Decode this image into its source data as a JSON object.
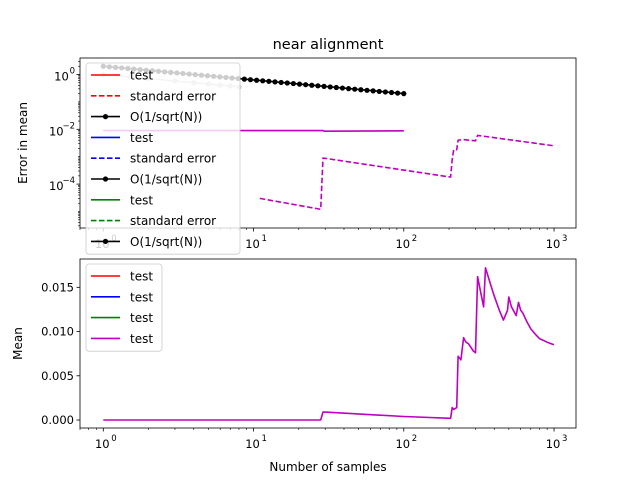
{
  "title": "near alignment",
  "chart_data": [
    {
      "type": "line",
      "title": "near alignment",
      "xlabel": "",
      "ylabel": "Error in mean",
      "xscale": "log",
      "yscale": "log",
      "xlim": [
        0.7,
        1400
      ],
      "ylim": [
        2.5e-06,
        4
      ],
      "x_ticks": [
        1,
        10,
        100,
        1000
      ],
      "x_tick_labels": [
        "10",
        "10",
        "10",
        "10"
      ],
      "x_tick_exponents": [
        "0",
        "1",
        "2",
        "3"
      ],
      "y_ticks": [
        0.0001,
        0.01,
        1
      ],
      "y_tick_labels": [
        "10",
        "10",
        "10"
      ],
      "y_tick_exponents": [
        "−4",
        "−2",
        "0"
      ],
      "grid": false,
      "legend_position": "upper-left",
      "legend": [
        {
          "label": "test",
          "color": "#ff0000",
          "style": "solid"
        },
        {
          "label": "standard error",
          "color": "#ff0000",
          "style": "dashed"
        },
        {
          "label": "O(1/sqrt(N))",
          "color": "#000000",
          "style": "marker-line"
        },
        {
          "label": "test",
          "color": "#0000ff",
          "style": "solid"
        },
        {
          "label": "standard error",
          "color": "#0000ff",
          "style": "dashed"
        },
        {
          "label": "O(1/sqrt(N))",
          "color": "#000000",
          "style": "marker-line"
        },
        {
          "label": "test",
          "color": "#008000",
          "style": "solid"
        },
        {
          "label": "standard error",
          "color": "#008000",
          "style": "dashed"
        },
        {
          "label": "O(1/sqrt(N))",
          "color": "#000000",
          "style": "marker-line"
        }
      ],
      "series": [
        {
          "color": "#bf00bf",
          "style": "solid",
          "x": [
            1,
            29,
            29.5,
            100
          ],
          "y": [
            0.009,
            0.009,
            0.0085,
            0.0088
          ]
        },
        {
          "color": "#bf00bf",
          "style": "dashed",
          "x": [
            11,
            28,
            29,
            205,
            210,
            215,
            225,
            230,
            250,
            300,
            310,
            1000
          ],
          "y": [
            3e-05,
            1.2e-05,
            0.0009,
            0.00018,
            0.0008,
            0.0018,
            0.0018,
            0.004,
            0.0042,
            0.0038,
            0.006,
            0.0025
          ]
        },
        {
          "color": "#c8c8c8",
          "style": "marker-line",
          "x": [
            1,
            1.5,
            2,
            3,
            4,
            5,
            6,
            7,
            8
          ],
          "y": [
            1,
            0.82,
            0.71,
            0.58,
            0.5,
            0.45,
            0.41,
            0.38,
            0.35
          ]
        },
        {
          "color": "#000000",
          "style": "marker-line",
          "x": [
            1,
            100
          ],
          "y": [
            2.0,
            0.2
          ]
        }
      ]
    },
    {
      "type": "line",
      "title": "",
      "xlabel": "Number of samples",
      "ylabel": "Mean",
      "xscale": "log",
      "yscale": "linear",
      "xlim": [
        0.7,
        1400
      ],
      "ylim": [
        -0.0009,
        0.0182
      ],
      "x_ticks": [
        1,
        10,
        100,
        1000
      ],
      "x_tick_labels": [
        "10",
        "10",
        "10",
        "10"
      ],
      "x_tick_exponents": [
        "0",
        "1",
        "2",
        "3"
      ],
      "y_ticks": [
        0,
        0.005,
        0.01,
        0.015
      ],
      "y_tick_labels": [
        "0.000",
        "0.005",
        "0.010",
        "0.015"
      ],
      "grid": false,
      "legend_position": "upper-left",
      "legend": [
        {
          "label": "test",
          "color": "#ff0000",
          "style": "solid"
        },
        {
          "label": "test",
          "color": "#0000ff",
          "style": "solid"
        },
        {
          "label": "test",
          "color": "#008000",
          "style": "solid"
        },
        {
          "label": "test",
          "color": "#bf00bf",
          "style": "solid"
        }
      ],
      "series": [
        {
          "color": "#bf00bf",
          "style": "solid",
          "x": [
            1,
            28,
            29,
            30,
            100,
            205,
            210,
            215,
            225,
            230,
            240,
            250,
            255,
            260,
            270,
            280,
            290,
            300,
            310,
            320,
            340,
            350,
            360,
            380,
            400,
            430,
            460,
            490,
            500,
            520,
            560,
            580,
            600,
            620,
            660,
            700,
            750,
            800,
            900,
            1000
          ],
          "y": [
            0,
            0,
            0.0009,
            0.0009,
            0.0004,
            0.0002,
            0.0014,
            0.0012,
            0.0014,
            0.0072,
            0.0068,
            0.0093,
            0.009,
            0.0088,
            0.0086,
            0.0082,
            0.0078,
            0.0076,
            0.0162,
            0.015,
            0.0128,
            0.0172,
            0.0165,
            0.0152,
            0.014,
            0.0125,
            0.0113,
            0.0124,
            0.0139,
            0.0128,
            0.0118,
            0.0133,
            0.0124,
            0.0121,
            0.0111,
            0.0103,
            0.0097,
            0.0092,
            0.0088,
            0.0085
          ]
        }
      ]
    }
  ]
}
